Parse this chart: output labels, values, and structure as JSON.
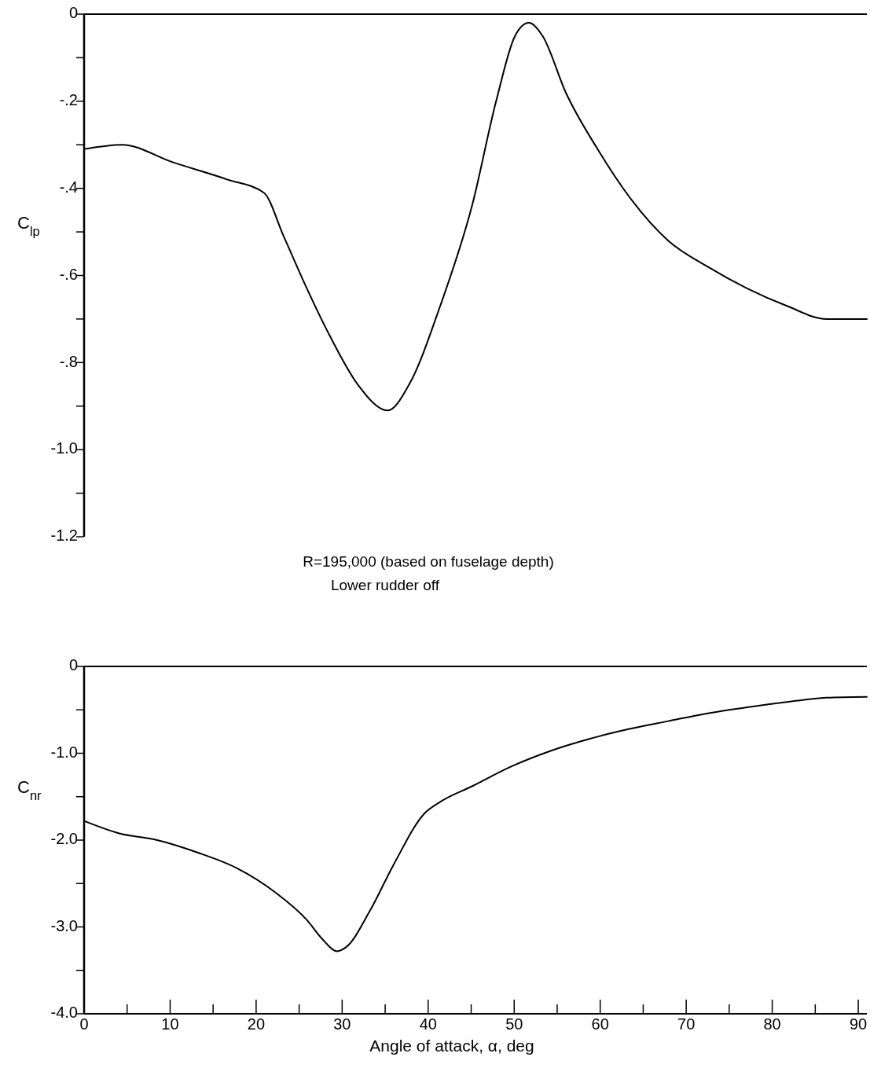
{
  "chart_data": [
    {
      "type": "line",
      "ylabel": "C$_{lp}$",
      "xlim": [
        0,
        91
      ],
      "ylim": [
        -1.2,
        0
      ],
      "tick_labels": "y",
      "grid": false,
      "marker": "none",
      "line_style": "solid",
      "yticks": [
        0,
        {
          "value": -0.1,
          "label": null
        },
        {
          "value": -0.2,
          "label": "-.2"
        },
        {
          "value": -0.3,
          "label": null
        },
        {
          "value": -0.4,
          "label": "-.4"
        },
        {
          "value": -0.5,
          "label": null
        },
        {
          "value": -0.6,
          "label": "-.6"
        },
        {
          "value": -0.7,
          "label": null
        },
        {
          "value": -0.8,
          "label": "-.8"
        },
        {
          "value": -0.9,
          "label": null
        },
        {
          "value": -1.0,
          "label": "-1.0"
        },
        {
          "value": -1.1,
          "label": null
        },
        {
          "value": -1.2,
          "label": "-1.2"
        }
      ],
      "ref_lines": [
        {
          "axis": "y",
          "value": 0
        }
      ],
      "annotations": [
        "R=195,000 (based on fuselage depth)",
        "Lower rudder off"
      ],
      "series": [
        {
          "color": "#000000",
          "x": [
            0,
            4.4,
            10.3,
            16.7,
            20.9,
            23.2,
            25.9,
            28.6,
            31.8,
            35.3,
            37.8,
            41.4,
            45.1,
            47.9,
            50.1,
            51.7,
            53.3,
            56,
            59.7,
            63.4,
            67.9,
            72.5,
            77.1,
            81.7,
            86.3,
            91
          ],
          "values": [
            -0.31,
            -0.3,
            -0.34,
            -0.38,
            -0.41,
            -0.51,
            -0.63,
            -0.74,
            -0.85,
            -0.91,
            -0.85,
            -0.67,
            -0.44,
            -0.2,
            -0.05,
            -0.02,
            -0.05,
            -0.18,
            -0.31,
            -0.42,
            -0.52,
            -0.58,
            -0.63,
            -0.67,
            -0.7,
            -0.7
          ]
        }
      ]
    },
    {
      "type": "line",
      "ylabel": "C$_{nr}$",
      "xlabel": "Angle of attack, α, deg",
      "xlim": [
        0,
        91
      ],
      "ylim": [
        -4,
        0
      ],
      "grid": false,
      "marker": "none",
      "line_style": "solid",
      "xticks": [
        0,
        {
          "value": 5,
          "label": null
        },
        10,
        {
          "value": 15,
          "label": null
        },
        20,
        {
          "value": 25,
          "label": null
        },
        30,
        {
          "value": 35,
          "label": null
        },
        40,
        {
          "value": 45,
          "label": null
        },
        50,
        {
          "value": 55,
          "label": null
        },
        60,
        {
          "value": 65,
          "label": null
        },
        70,
        {
          "value": 75,
          "label": null
        },
        80,
        {
          "value": 85,
          "label": null
        },
        90
      ],
      "yticks": [
        0,
        {
          "value": -0.5,
          "label": null
        },
        {
          "value": -1,
          "label": "-1.0"
        },
        {
          "value": -1.5,
          "label": null
        },
        {
          "value": -2,
          "label": "-2.0"
        },
        {
          "value": -2.5,
          "label": null
        },
        {
          "value": -3,
          "label": "-3.0"
        },
        {
          "value": -3.5,
          "label": null
        },
        {
          "value": -4,
          "label": "-4.0"
        }
      ],
      "ref_lines": [
        {
          "axis": "y",
          "value": 0
        }
      ],
      "series": [
        {
          "color": "#000000",
          "x": [
            0,
            4,
            8.5,
            13.1,
            17.7,
            22.2,
            25.9,
            27.7,
            29.4,
            30.5,
            33.2,
            36,
            39.6,
            41.4,
            45.1,
            49.7,
            54.3,
            58.9,
            63.4,
            67.9,
            72.5,
            77.1,
            81.7,
            86.3,
            91
          ],
          "values": [
            -1.78,
            -1.92,
            -2.0,
            -2.14,
            -2.32,
            -2.6,
            -2.92,
            -3.14,
            -3.28,
            -3.23,
            -2.82,
            -2.28,
            -1.69,
            -1.56,
            -1.38,
            -1.15,
            -0.97,
            -0.83,
            -0.72,
            -0.63,
            -0.54,
            -0.47,
            -0.41,
            -0.36,
            -0.35
          ]
        }
      ]
    }
  ]
}
